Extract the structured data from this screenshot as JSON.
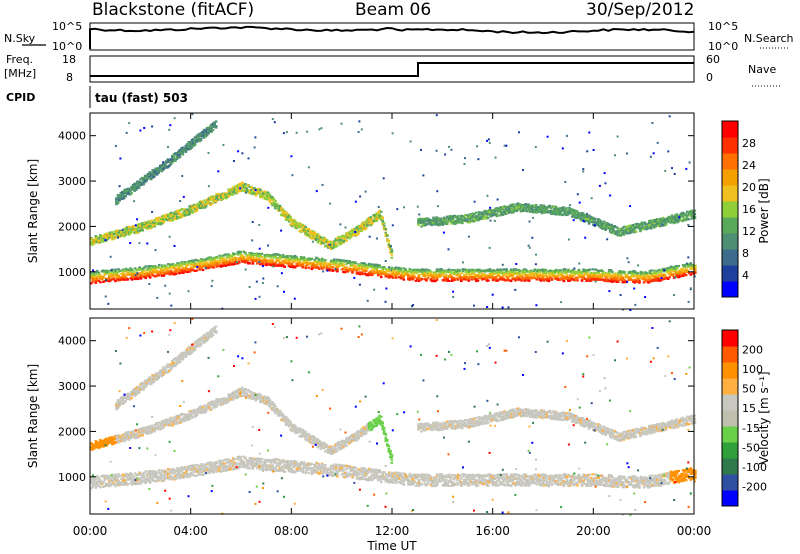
{
  "header": {
    "title": "Blackstone (fitACF)",
    "beam": "Beam 06",
    "date": "30/Sep/2012"
  },
  "top_panels": {
    "nsky_label": "N.Sky",
    "nsky_ticks": [
      "10^5",
      "10^0"
    ],
    "nsearch_label": "N.Search",
    "freq_label": "Freq.",
    "freq_unit": "[MHz]",
    "freq_ticks": [
      "18",
      "8"
    ],
    "nave_label": "Nave",
    "nave_ticks": [
      "60",
      "0"
    ],
    "cpid_label": "CPID",
    "cpid_value": "tau (fast) 503"
  },
  "colors": {
    "power": [
      "#0000ff",
      "#1f3f9c",
      "#3d6b8c",
      "#4e8f74",
      "#5aa85a",
      "#8ecf3a",
      "#f0c020",
      "#f4a000",
      "#ff7000",
      "#ff3000",
      "#ff0000"
    ],
    "velocity": [
      "#ff0000",
      "#ff5a00",
      "#ff9000",
      "#ffb040",
      "#c8c8c0",
      "#c0c0b0",
      "#6ad04a",
      "#2fa03a",
      "#2e7a4a",
      "#2f4fa0",
      "#0000ff"
    ]
  },
  "chart_data": [
    {
      "type": "heatmap",
      "title": "",
      "xlabel": "",
      "ylabel": "Slant Range [km]",
      "xlim": [
        "00:00",
        "24:00"
      ],
      "ylim": [
        180,
        4500
      ],
      "x_ticks": [
        "00:00",
        "04:00",
        "08:00",
        "12:00",
        "16:00",
        "20:00",
        "00:00"
      ],
      "y_ticks": [
        1000,
        2000,
        3000,
        4000
      ],
      "colorbar_label": "Power [dB]",
      "colorbar_ticks": [
        "4",
        "8",
        "12",
        "16",
        "20",
        "24",
        "28"
      ],
      "colorbar_range": [
        0,
        30
      ],
      "bands": [
        {
          "name": "main",
          "points": [
            [
              0,
              900
            ],
            [
              2,
              1000
            ],
            [
              4,
              1150
            ],
            [
              6,
              1350
            ],
            [
              7,
              1300
            ],
            [
              8,
              1250
            ],
            [
              9,
              1200
            ],
            [
              10,
              1150
            ],
            [
              12,
              1000
            ],
            [
              13,
              950
            ],
            [
              16,
              950
            ],
            [
              20,
              950
            ],
            [
              22,
              900
            ],
            [
              24,
              1100
            ]
          ],
          "power": 28
        },
        {
          "name": "rising",
          "points": [
            [
              0,
              1700
            ],
            [
              2,
              2000
            ],
            [
              4,
              2400
            ],
            [
              6,
              2900
            ],
            [
              7,
              2700
            ],
            [
              8,
              2100
            ],
            [
              9.5,
              1600
            ],
            [
              10.5,
              1900
            ],
            [
              11.5,
              2300
            ],
            [
              12,
              1300
            ]
          ],
          "power": 14
        },
        {
          "name": "upper",
          "points": [
            [
              1,
              2600
            ],
            [
              3,
              3400
            ],
            [
              5,
              4300
            ]
          ],
          "power": 8
        },
        {
          "name": "late",
          "points": [
            [
              13,
              2100
            ],
            [
              15,
              2200
            ],
            [
              17,
              2450
            ],
            [
              19,
              2350
            ],
            [
              21,
              1900
            ],
            [
              24,
              2300
            ]
          ],
          "power": 10
        }
      ]
    },
    {
      "type": "heatmap",
      "title": "",
      "xlabel": "Time UT",
      "ylabel": "Slant Range [km]",
      "xlim": [
        "00:00",
        "24:00"
      ],
      "ylim": [
        180,
        4500
      ],
      "x_ticks": [
        "00:00",
        "04:00",
        "08:00",
        "12:00",
        "16:00",
        "20:00",
        "00:00"
      ],
      "y_ticks": [
        1000,
        2000,
        3000,
        4000
      ],
      "colorbar_label": "Velocity [m s⁻¹]",
      "colorbar_ticks": [
        "200",
        "100",
        "50",
        "15",
        "-15",
        "-50",
        "-100",
        "-200"
      ],
      "colorbar_range": [
        -250,
        250
      ]
    }
  ]
}
